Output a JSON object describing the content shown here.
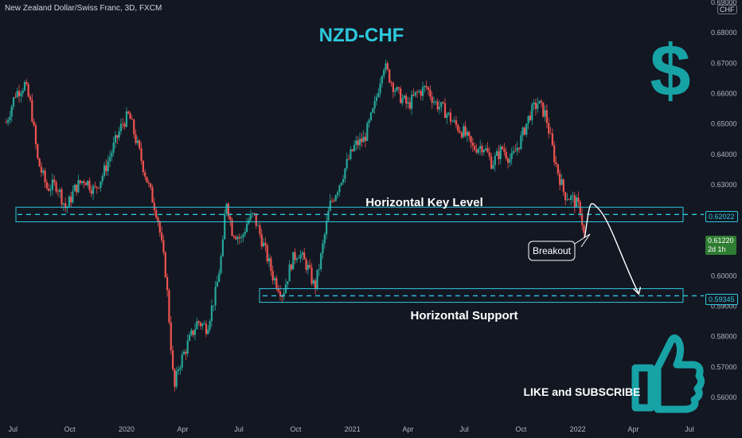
{
  "header": {
    "symbol_title": "New Zealand Dollar/Swiss Franc, 3D, FXCM",
    "currency_badge": "CHF"
  },
  "colors": {
    "background": "#131722",
    "up": "#26a69a",
    "down": "#ef5350",
    "accent": "#2dc8dc",
    "axis_text": "#b2b5be"
  },
  "annotations": {
    "pair_title": "NZD-CHF",
    "key_level_label": "Horizontal Key Level",
    "support_label": "Horizontal Support",
    "breakout_label": "Breakout",
    "cta_text": "LIKE and SUBSCRIBE",
    "dollar_icon": "dollar-sign-icon",
    "thumbs_icon": "thumbs-up-icon"
  },
  "price_labels": {
    "key_level": "0.62022",
    "support": "0.59345",
    "current": "0.61220",
    "countdown": "2d 1h"
  },
  "chart_data": {
    "type": "candlestick",
    "title": "NZD-CHF",
    "ylim": [
      0.5545,
      0.6895
    ],
    "y_ticks": [
      "0.69000",
      "0.68000",
      "0.67000",
      "0.66000",
      "0.65000",
      "0.64000",
      "0.63000",
      "0.62000",
      "0.61000",
      "0.60000",
      "0.59000",
      "0.58000",
      "0.57000",
      "0.56000"
    ],
    "x_ticks": [
      "Jul",
      "Oct",
      "2020",
      "Apr",
      "Jul",
      "Oct",
      "2021",
      "Apr",
      "Jul",
      "Oct",
      "2022",
      "Apr",
      "Jul"
    ],
    "key_level": 0.62022,
    "key_zone": [
      0.6178,
      0.6226
    ],
    "support_level": 0.59345,
    "support_zone": [
      0.5913,
      0.5958
    ],
    "grid": false,
    "close_path": [
      [
        "2019-06-20",
        0.6505
      ],
      [
        "2019-07-05",
        0.66
      ],
      [
        "2019-07-20",
        0.663
      ],
      [
        "2019-07-30",
        0.656
      ],
      [
        "2019-08-10",
        0.638
      ],
      [
        "2019-08-25",
        0.629
      ],
      [
        "2019-09-10",
        0.63
      ],
      [
        "2019-09-25",
        0.622
      ],
      [
        "2019-10-10",
        0.629
      ],
      [
        "2019-10-25",
        0.632
      ],
      [
        "2019-11-10",
        0.628
      ],
      [
        "2019-11-25",
        0.634
      ],
      [
        "2019-12-10",
        0.642
      ],
      [
        "2019-12-25",
        0.65
      ],
      [
        "2020-01-05",
        0.653
      ],
      [
        "2020-01-20",
        0.642
      ],
      [
        "2020-02-05",
        0.63
      ],
      [
        "2020-02-20",
        0.62
      ],
      [
        "2020-03-05",
        0.6
      ],
      [
        "2020-03-12",
        0.58
      ],
      [
        "2020-03-18",
        0.562
      ],
      [
        "2020-03-25",
        0.57
      ],
      [
        "2020-04-10",
        0.578
      ],
      [
        "2020-04-25",
        0.585
      ],
      [
        "2020-05-10",
        0.583
      ],
      [
        "2020-05-25",
        0.595
      ],
      [
        "2020-06-05",
        0.61
      ],
      [
        "2020-06-10",
        0.626
      ],
      [
        "2020-06-20",
        0.615
      ],
      [
        "2020-07-05",
        0.612
      ],
      [
        "2020-07-15",
        0.618
      ],
      [
        "2020-07-25",
        0.62
      ],
      [
        "2020-08-10",
        0.61
      ],
      [
        "2020-08-25",
        0.6
      ],
      [
        "2020-09-10",
        0.594
      ],
      [
        "2020-09-25",
        0.605
      ],
      [
        "2020-10-05",
        0.608
      ],
      [
        "2020-10-20",
        0.603
      ],
      [
        "2020-11-01",
        0.596
      ],
      [
        "2020-11-10",
        0.605
      ],
      [
        "2020-11-25",
        0.623
      ],
      [
        "2020-12-10",
        0.63
      ],
      [
        "2020-12-25",
        0.638
      ],
      [
        "2021-01-05",
        0.643
      ],
      [
        "2021-01-20",
        0.645
      ],
      [
        "2021-02-05",
        0.655
      ],
      [
        "2021-02-20",
        0.67
      ],
      [
        "2021-03-05",
        0.664
      ],
      [
        "2021-03-15",
        0.66
      ],
      [
        "2021-04-01",
        0.656
      ],
      [
        "2021-04-15",
        0.66
      ],
      [
        "2021-05-01",
        0.662
      ],
      [
        "2021-05-15",
        0.657
      ],
      [
        "2021-06-01",
        0.654
      ],
      [
        "2021-06-15",
        0.65
      ],
      [
        "2021-07-01",
        0.647
      ],
      [
        "2021-07-15",
        0.642
      ],
      [
        "2021-08-01",
        0.643
      ],
      [
        "2021-08-15",
        0.637
      ],
      [
        "2021-09-01",
        0.642
      ],
      [
        "2021-09-15",
        0.638
      ],
      [
        "2021-10-01",
        0.645
      ],
      [
        "2021-10-15",
        0.653
      ],
      [
        "2021-10-28",
        0.657
      ],
      [
        "2021-11-10",
        0.653
      ],
      [
        "2021-11-25",
        0.638
      ],
      [
        "2021-12-10",
        0.627
      ],
      [
        "2021-12-25",
        0.625
      ],
      [
        "2022-01-05",
        0.622
      ],
      [
        "2022-01-12",
        0.6122
      ]
    ],
    "projection": [
      [
        "2022-01-12",
        0.6122
      ],
      [
        "2022-02-01",
        0.62
      ],
      [
        "2022-03-10",
        0.607
      ],
      [
        "2022-04-10",
        0.594
      ]
    ]
  }
}
